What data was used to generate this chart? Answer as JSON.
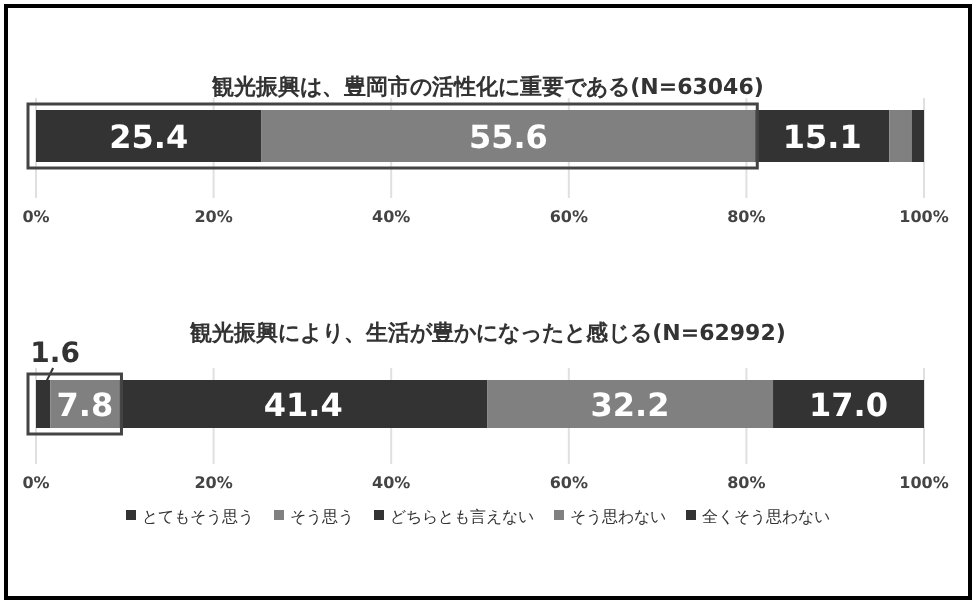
{
  "chart_data": [
    {
      "type": "bar",
      "orientation": "horizontal",
      "stacked": true,
      "title": "観光振興は、豊岡市の活性化に重要である(N=63046)",
      "categories": [
        null
      ],
      "xlim": [
        0,
        100
      ],
      "xticks": [
        {
          "value": 0,
          "label": "0%"
        },
        {
          "value": 20,
          "label": "20%"
        },
        {
          "value": 40,
          "label": "40%"
        },
        {
          "value": 60,
          "label": "60%"
        },
        {
          "value": 80,
          "label": "80%"
        },
        {
          "value": 100,
          "label": "100%"
        }
      ],
      "grid": "x",
      "legend": false,
      "series": [
        {
          "color": "#333333",
          "values": [
            25.4
          ],
          "value_labels": [
            "25.4"
          ]
        },
        {
          "color": "#808080",
          "values": [
            55.6
          ],
          "value_labels": [
            "55.6"
          ]
        },
        {
          "color": "#333333",
          "values": [
            15.1
          ],
          "value_labels": [
            "15.1"
          ]
        },
        {
          "color": "#808080",
          "values": [
            2.5
          ],
          "value_labels": [
            null
          ]
        },
        {
          "color": "#333333",
          "values": [
            1.4
          ],
          "value_labels": [
            null
          ]
        }
      ]
    },
    {
      "type": "bar",
      "orientation": "horizontal",
      "stacked": true,
      "title": "観光振興により、生活が豊かになったと感じる(N=62992)",
      "categories": [
        null
      ],
      "xlim": [
        0,
        100
      ],
      "xticks": [
        {
          "value": 0,
          "label": "0%"
        },
        {
          "value": 20,
          "label": "20%"
        },
        {
          "value": 40,
          "label": "40%"
        },
        {
          "value": 60,
          "label": "60%"
        },
        {
          "value": 80,
          "label": "80%"
        },
        {
          "value": 100,
          "label": "100%"
        }
      ],
      "grid": "x",
      "legend": "bottom",
      "series": [
        {
          "name": "とてもそう思う",
          "color": "#333333",
          "values": [
            1.6
          ],
          "value_labels": [
            "1.6"
          ]
        },
        {
          "name": "そう思う",
          "color": "#808080",
          "values": [
            7.8
          ],
          "value_labels": [
            "7.8"
          ]
        },
        {
          "name": "どちらとも言えない",
          "color": "#333333",
          "values": [
            41.4
          ],
          "value_labels": [
            "41.4"
          ]
        },
        {
          "name": "そう思わない",
          "color": "#808080",
          "values": [
            32.2
          ],
          "value_labels": [
            "32.2"
          ]
        },
        {
          "name": "全くそう思わない",
          "color": "#333333",
          "values": [
            17.0
          ],
          "value_labels": [
            "17.0"
          ]
        }
      ]
    }
  ]
}
